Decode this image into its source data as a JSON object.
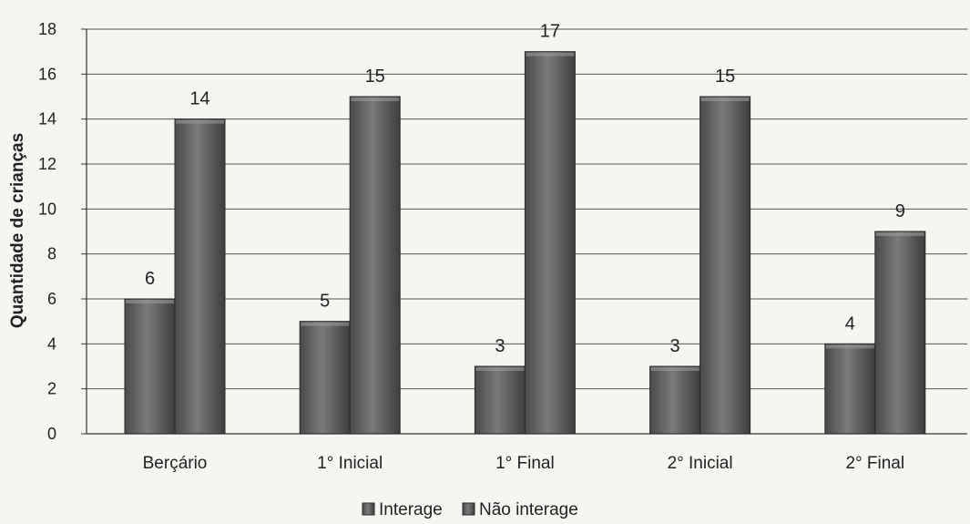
{
  "chart_data": {
    "type": "bar",
    "title": "",
    "xlabel": "",
    "ylabel": "Quantidade de crianças",
    "ylim": [
      0,
      18
    ],
    "yticks": [
      0,
      2,
      4,
      6,
      8,
      10,
      12,
      14,
      16,
      18
    ],
    "grid": true,
    "legend_position": "bottom",
    "categories": [
      "Berçário",
      "1° Inicial",
      "1° Final",
      "2° Inicial",
      "2° Final"
    ],
    "series": [
      {
        "name": "Interage",
        "values": [
          6,
          5,
          3,
          3,
          4
        ],
        "color": "#6e6e6e"
      },
      {
        "name": "Não interage",
        "values": [
          14,
          15,
          17,
          15,
          9
        ],
        "color": "#5a5a5a"
      }
    ]
  }
}
